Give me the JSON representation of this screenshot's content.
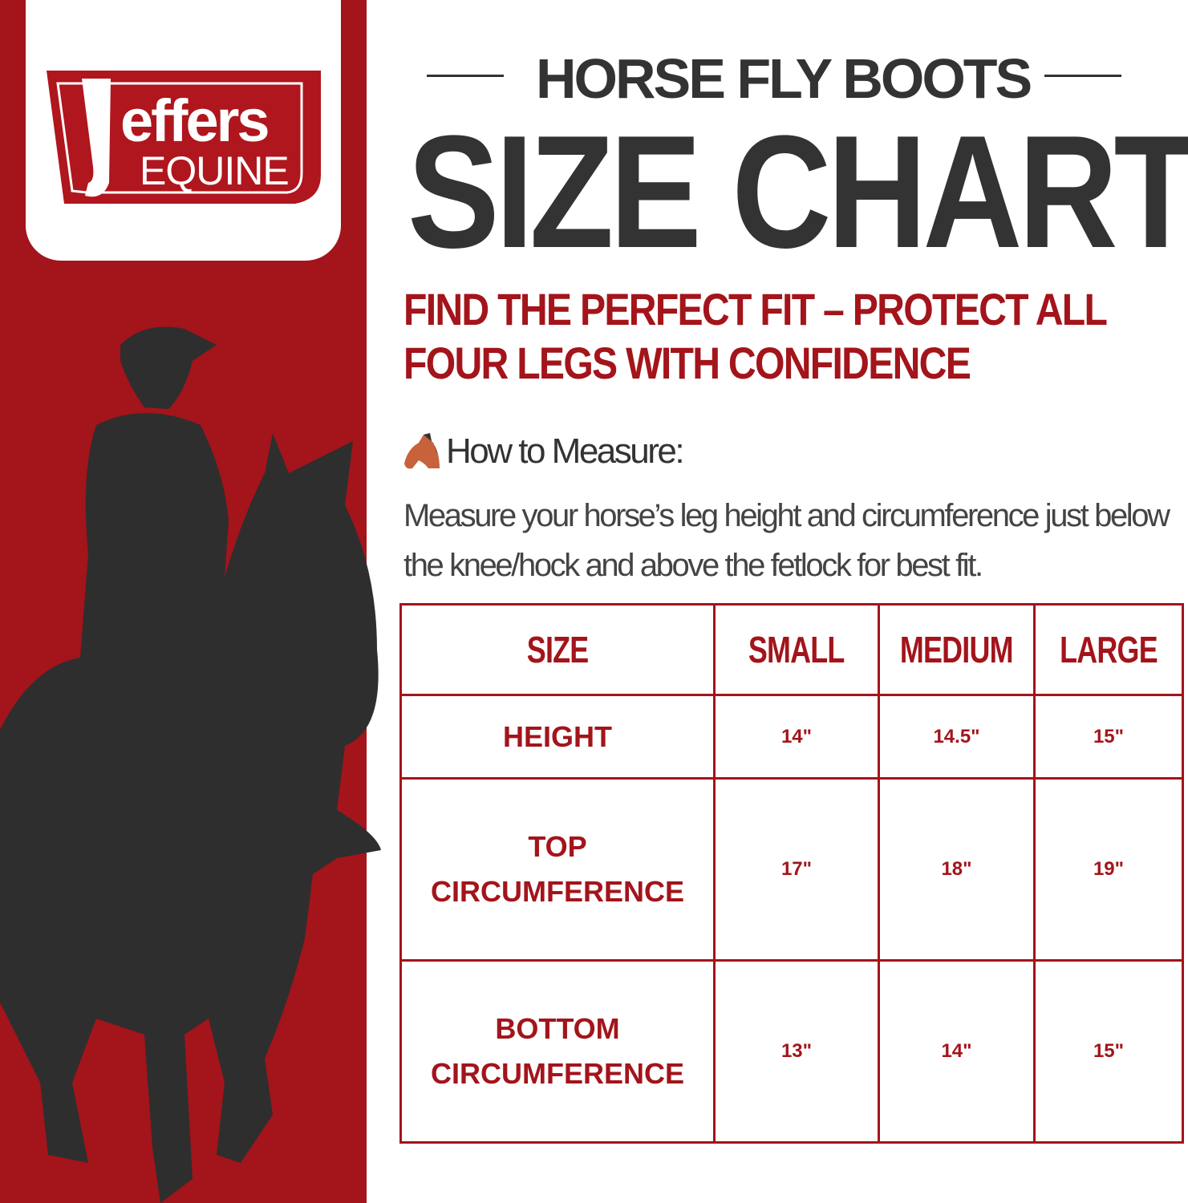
{
  "brand": {
    "logo_text": "jeffers",
    "logo_subtext": "EQUINE",
    "colors": {
      "primary_red": "#a3141b",
      "dark": "#333333"
    }
  },
  "header": {
    "title": "HORSE FLY BOOTS",
    "headline": "SIZE CHART"
  },
  "subheading": {
    "line1": "FIND THE PERFECT FIT – PROTECT ALL",
    "line2": "FOUR LEGS WITH CONFIDENCE"
  },
  "measure": {
    "icon": "horse-face-icon",
    "label": "How to Measure:",
    "text": "Measure your horse’s leg height and circumference just below the knee/hock and above the fetlock for best fit."
  },
  "table": {
    "headers": [
      "SIZE",
      "SMALL",
      "MEDIUM",
      "LARGE"
    ],
    "rows": [
      {
        "label": "HEIGHT",
        "values": [
          "14\"",
          "14.5\"",
          "15\""
        ]
      },
      {
        "label": "TOP CIRCUMFERENCE",
        "values": [
          "17\"",
          "18\"",
          "19\""
        ]
      },
      {
        "label": "BOTTOM CIRCUMFERENCE",
        "values": [
          "13\"",
          "14\"",
          "15\""
        ]
      }
    ]
  }
}
